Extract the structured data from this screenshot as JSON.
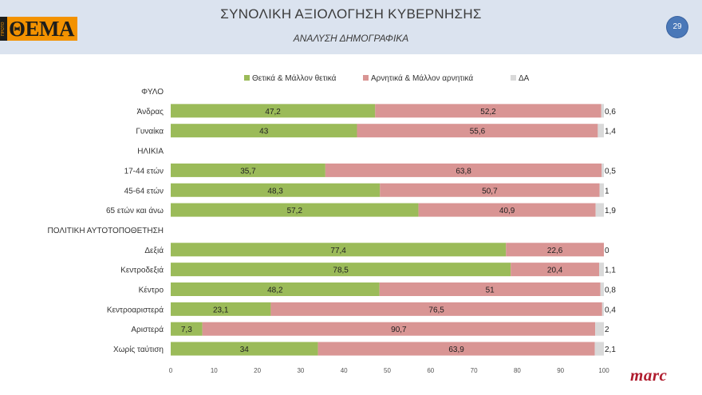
{
  "header": {
    "title": "ΣΥΝΟΛΙΚΗ ΑΞΙΟΛΟΓΗΣΗ ΚΥΒΕΡΝΗΣΗΣ",
    "subtitle": "ΑΝΑΛΥΣΗ ΔΗΜΟΓΡΑΦΙΚΑ",
    "page_number": "29",
    "logo_text": "ΘΕΜΑ",
    "logo_strip": "ΠΡΩΤΟ"
  },
  "footer": {
    "brand": "marc"
  },
  "colors": {
    "positive": "#9bbb59",
    "negative": "#d99594",
    "dk": "#d9d9d9",
    "header_bg": "#dbe3ef",
    "accent": "#4a78b8"
  },
  "chart_data": {
    "type": "bar",
    "orientation": "horizontal",
    "stacked": true,
    "legend_position": "top",
    "xlim": [
      0,
      100
    ],
    "xticks": [
      0,
      10,
      20,
      30,
      40,
      50,
      60,
      70,
      80,
      90,
      100
    ],
    "grid": false,
    "series_names": [
      "Θετικά & Μάλλον θετικά",
      "Αρνητικά & Μάλλον αρνητικά",
      "ΔΑ"
    ],
    "categories": [
      {
        "label": "ΦΥΛΟ",
        "header": true
      },
      {
        "label": "Άνδρας",
        "values": [
          47.2,
          52.2,
          0.6
        ],
        "labels": [
          "47,2",
          "52,2",
          "0,6"
        ]
      },
      {
        "label": "Γυναίκα",
        "values": [
          43,
          55.6,
          1.4
        ],
        "labels": [
          "43",
          "55,6",
          "1,4"
        ]
      },
      {
        "label": "ΗΛΙΚΙΑ",
        "header": true
      },
      {
        "label": "17-44 ετών",
        "values": [
          35.7,
          63.8,
          0.5
        ],
        "labels": [
          "35,7",
          "63,8",
          "0,5"
        ]
      },
      {
        "label": "45-64 ετών",
        "values": [
          48.3,
          50.7,
          1
        ],
        "labels": [
          "48,3",
          "50,7",
          "1"
        ]
      },
      {
        "label": "65 ετών και άνω",
        "values": [
          57.2,
          40.9,
          1.9
        ],
        "labels": [
          "57,2",
          "40,9",
          "1,9"
        ]
      },
      {
        "label": "ΠΟΛΙΤΙΚΗ ΑΥΤΟΤΟΠΟΘΕΤΗΣΗ",
        "header": true
      },
      {
        "label": "Δεξιά",
        "values": [
          77.4,
          22.6,
          0
        ],
        "labels": [
          "77,4",
          "22,6",
          "0"
        ]
      },
      {
        "label": "Κεντροδεξιά",
        "values": [
          78.5,
          20.4,
          1.1
        ],
        "labels": [
          "78,5",
          "20,4",
          "1,1"
        ]
      },
      {
        "label": "Κέντρο",
        "values": [
          48.2,
          51,
          0.8
        ],
        "labels": [
          "48,2",
          "51",
          "0,8"
        ]
      },
      {
        "label": "Κεντροαριστερά",
        "values": [
          23.1,
          76.5,
          0.4
        ],
        "labels": [
          "23,1",
          "76,5",
          "0,4"
        ]
      },
      {
        "label": "Αριστερά",
        "values": [
          7.3,
          90.7,
          2
        ],
        "labels": [
          "7,3",
          "90,7",
          "2"
        ]
      },
      {
        "label": "Χωρίς ταύτιση",
        "values": [
          34,
          63.9,
          2.1
        ],
        "labels": [
          "34",
          "63,9",
          "2,1"
        ]
      }
    ]
  }
}
